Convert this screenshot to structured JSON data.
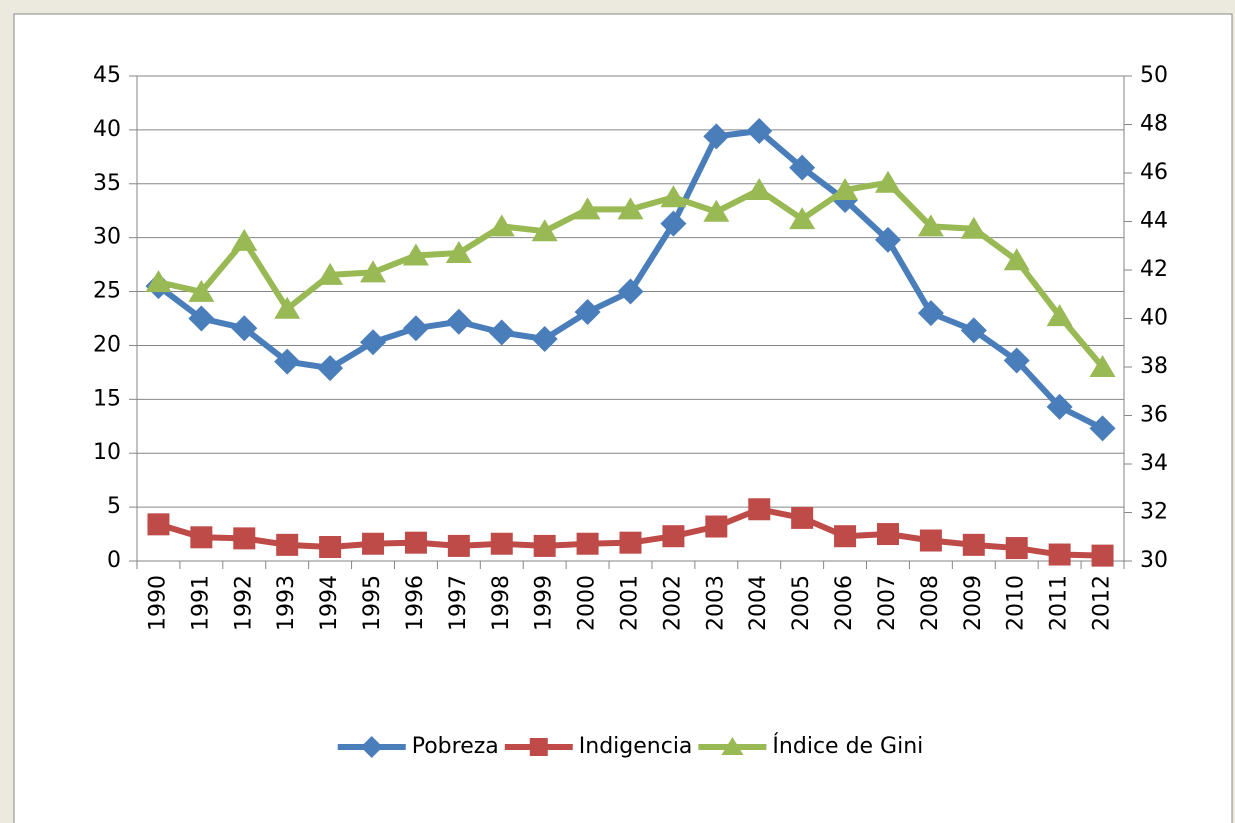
{
  "chart_data": {
    "type": "line",
    "categories": [
      "1990",
      "1991",
      "1992",
      "1993",
      "1994",
      "1995",
      "1996",
      "1997",
      "1998",
      "1999",
      "2000",
      "2001",
      "2002",
      "2003",
      "2004",
      "2005",
      "2006",
      "2007",
      "2008",
      "2009",
      "2010",
      "2011",
      "2012"
    ],
    "series": [
      {
        "name": "Pobreza",
        "color": "#4a7ebb",
        "marker": "diamond",
        "values": [
          25.5,
          22.5,
          21.6,
          18.5,
          17.9,
          20.3,
          21.6,
          22.2,
          21.2,
          20.6,
          23.1,
          25.0,
          31.3,
          39.4,
          39.9,
          36.5,
          33.5,
          29.8,
          23.0,
          21.4,
          18.6,
          14.3,
          12.3
        ]
      },
      {
        "name": "Indigencia",
        "color": "#be4b48",
        "marker": "square",
        "values": [
          3.4,
          2.2,
          2.1,
          1.5,
          1.3,
          1.6,
          1.7,
          1.4,
          1.6,
          1.4,
          1.6,
          1.7,
          2.3,
          3.2,
          4.8,
          4.0,
          2.3,
          2.5,
          1.9,
          1.5,
          1.2,
          0.6,
          0.5
        ]
      },
      {
        "name": "Índice de Gini",
        "color": "#98b954",
        "marker": "triangle",
        "axis": "y2",
        "values": [
          41.5,
          41.1,
          43.2,
          40.4,
          41.8,
          41.9,
          42.6,
          42.7,
          43.8,
          43.6,
          44.5,
          44.5,
          45.0,
          44.4,
          45.3,
          44.1,
          45.3,
          45.6,
          43.8,
          43.7,
          42.4,
          40.1,
          38.0
        ]
      }
    ],
    "ylim": [
      0,
      45
    ],
    "yticks": [
      0,
      5,
      10,
      15,
      20,
      25,
      30,
      35,
      40,
      45
    ],
    "y2lim": [
      30,
      50
    ],
    "y2ticks": [
      30,
      32,
      34,
      36,
      38,
      40,
      42,
      44,
      46,
      48,
      50
    ],
    "grid": true,
    "legend": "bottom"
  }
}
